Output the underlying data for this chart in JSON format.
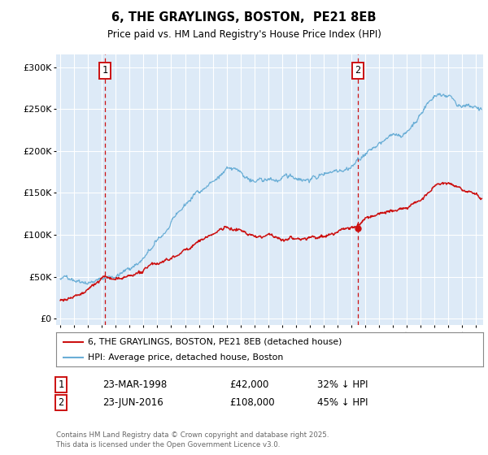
{
  "title": "6, THE GRAYLINGS, BOSTON,  PE21 8EB",
  "subtitle": "Price paid vs. HM Land Registry's House Price Index (HPI)",
  "yticks": [
    0,
    50000,
    100000,
    150000,
    200000,
    250000,
    300000
  ],
  "ytick_labels": [
    "£0",
    "£50K",
    "£100K",
    "£150K",
    "£200K",
    "£250K",
    "£300K"
  ],
  "ylim": [
    -8000,
    315000
  ],
  "xlim_start": 1994.7,
  "xlim_end": 2025.5,
  "hpi_color": "#6aaed6",
  "price_color": "#cc1111",
  "marker1_date": 1998.22,
  "marker2_date": 2016.47,
  "marker2_price": 108000,
  "legend_entry1": "6, THE GRAYLINGS, BOSTON, PE21 8EB (detached house)",
  "legend_entry2": "HPI: Average price, detached house, Boston",
  "footnote_line1": "Contains HM Land Registry data © Crown copyright and database right 2025.",
  "footnote_line2": "This data is licensed under the Open Government Licence v3.0.",
  "annotation1_date": "23-MAR-1998",
  "annotation1_price": "£42,000",
  "annotation1_hpi": "32% ↓ HPI",
  "annotation2_date": "23-JUN-2016",
  "annotation2_price": "£108,000",
  "annotation2_hpi": "45% ↓ HPI",
  "bg_color": "#ddeaf7",
  "grid_color": "#ffffff"
}
